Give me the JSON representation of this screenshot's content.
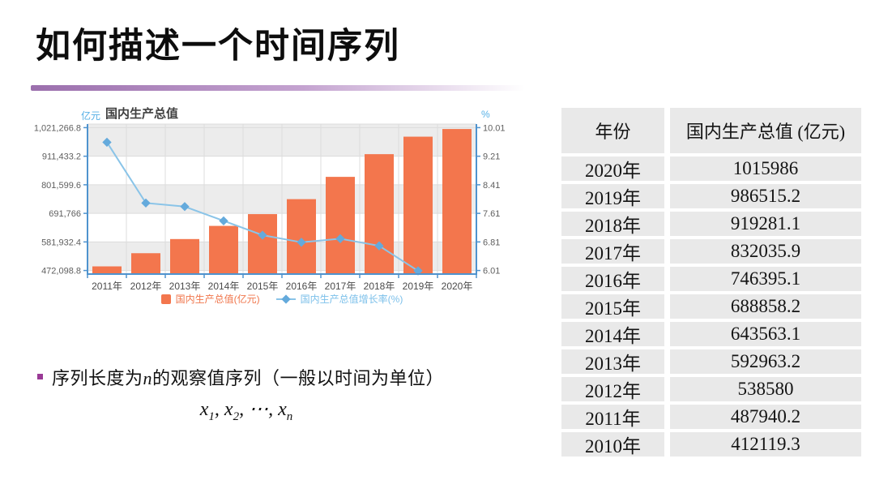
{
  "title": "如何描述一个时间序列",
  "chart_data": {
    "type": "bar+line",
    "title": "国内生产总值",
    "left_axis_unit": "亿元",
    "right_axis_unit": "%",
    "categories": [
      "2011年",
      "2012年",
      "2013年",
      "2014年",
      "2015年",
      "2016年",
      "2017年",
      "2018年",
      "2019年",
      "2020年"
    ],
    "series": [
      {
        "name": "国内生产总值(亿元)",
        "type": "bar",
        "axis": "left",
        "color": "#f3764d",
        "values": [
          487940.2,
          538580,
          592963.2,
          643563.1,
          688858.2,
          746395.1,
          832035.9,
          919281.1,
          986515.2,
          1015986
        ]
      },
      {
        "name": "国内生产总值增长率(%)",
        "type": "line",
        "axis": "right",
        "color": "#8ac4e8",
        "marker_color": "#64aadc",
        "values": [
          9.6,
          7.9,
          7.8,
          7.4,
          7.0,
          6.8,
          6.9,
          6.7,
          6.0
        ]
      }
    ],
    "left_ticks": {
      "labels": [
        "472,098.8",
        "581,932.4",
        "691,766",
        "801,599.6",
        "911,433.2",
        "1,021,266.8"
      ],
      "values": [
        472098.8,
        581932.4,
        691766,
        801599.6,
        911433.2,
        1021266.8
      ]
    },
    "right_ticks": {
      "labels": [
        "6.01",
        "6.81",
        "7.61",
        "8.41",
        "9.21",
        "10.01"
      ],
      "values": [
        6.01,
        6.81,
        7.61,
        8.41,
        9.21,
        10.01
      ]
    },
    "legend_position": "bottom",
    "grid": true
  },
  "table": {
    "headers": [
      "年份",
      "国内生产总值 (亿元)"
    ],
    "rows": [
      [
        "2020年",
        "1015986"
      ],
      [
        "2019年",
        "986515.2"
      ],
      [
        "2018年",
        "919281.1"
      ],
      [
        "2017年",
        "832035.9"
      ],
      [
        "2016年",
        "746395.1"
      ],
      [
        "2015年",
        "688858.2"
      ],
      [
        "2014年",
        "643563.1"
      ],
      [
        "2013年",
        "592963.2"
      ],
      [
        "2012年",
        "538580"
      ],
      [
        "2011年",
        "487940.2"
      ],
      [
        "2010年",
        "412119.3"
      ]
    ]
  },
  "bullet": {
    "segments": [
      {
        "text": "序列长度为",
        "italic": false
      },
      {
        "text": "n",
        "italic": true
      },
      {
        "text": "的观察值序列（一般以时间为单位）",
        "italic": false
      }
    ]
  },
  "formula": {
    "terms": [
      {
        "base": "x",
        "sub": "1"
      },
      {
        "base": "x",
        "sub": "2"
      },
      {
        "base": "⋯",
        "sub": ""
      },
      {
        "base": "x",
        "sub": "n"
      }
    ],
    "separator": ", "
  },
  "colors": {
    "bar": "#f3764d",
    "line": "#8ac4e8",
    "marker": "#64aadc",
    "axis": "#4f93ce",
    "grid": "#dcdcdc",
    "band_gray": "#ececec",
    "band_white": "#ffffff",
    "tick_label": "#5f5f5f",
    "x_label": "#4a4a4a",
    "unit_label": "#56b0e6",
    "chart_title": "#404040",
    "legend_bar_text": "#f0764c",
    "legend_line_text": "#7cc0ea",
    "divider_start": "#9b6fad",
    "divider_mid": "#c4a3d0",
    "table_cell_bg": "#e9e9e9",
    "bullet": "#9a3a96"
  }
}
